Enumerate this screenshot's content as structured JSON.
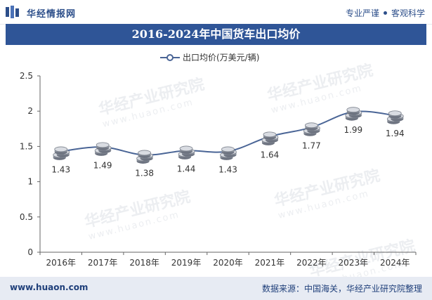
{
  "header": {
    "brand": "华经情报网",
    "slogan_left": "专业严谨",
    "slogan_right": "客观科学"
  },
  "title": "2016-2024年中国货车出口均价",
  "footer": {
    "site": "www.huaon.com",
    "source": "数据来源：中国海关，华经产业研究院整理"
  },
  "watermark": {
    "text": "华经产业研究院",
    "sub": "www.huaon.com"
  },
  "colors": {
    "title_bg": "#2f5597",
    "line": "#4a6596",
    "axis": "#333333"
  },
  "chart_data": {
    "type": "line",
    "categories": [
      "2016年",
      "2017年",
      "2018年",
      "2019年",
      "2020年",
      "2021年",
      "2022年",
      "2023年",
      "2024年"
    ],
    "series": [
      {
        "name": "出口均价(万美元/辆)",
        "values": [
          1.43,
          1.49,
          1.38,
          1.44,
          1.43,
          1.64,
          1.77,
          1.99,
          1.94
        ]
      }
    ],
    "value_labels": [
      "1.43",
      "1.49",
      "1.38",
      "1.44",
      "1.43",
      "1.64",
      "1.77",
      "1.99",
      "1.94"
    ],
    "yticks": [
      "0",
      "0.5",
      "1",
      "1.5",
      "2",
      "2.5"
    ],
    "ylim": [
      0,
      2.5
    ],
    "legend": "top-center",
    "marker": "coin-stack"
  }
}
